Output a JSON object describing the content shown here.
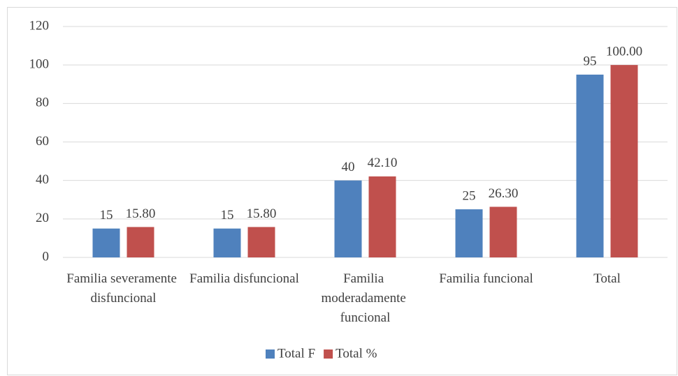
{
  "chart_data": {
    "type": "bar",
    "categories": [
      "Familia severamente disfuncional",
      "Familia disfuncional",
      "Familia moderadamente funcional",
      "Familia funcional",
      "Total"
    ],
    "series": [
      {
        "name": "Total F",
        "color": "#4f81bd",
        "values": [
          15,
          15,
          40,
          25,
          95
        ]
      },
      {
        "name": "Total %",
        "color": "#c0504d",
        "values": [
          15.8,
          15.8,
          42.1,
          26.3,
          100
        ],
        "value_labels": [
          "15.80",
          "15.80",
          "42.10",
          "26.30",
          "100.00"
        ]
      }
    ],
    "ylim": [
      0,
      120
    ],
    "yticks": [
      0,
      20,
      40,
      60,
      80,
      100,
      120
    ],
    "grid": true,
    "legend": "bottom"
  }
}
